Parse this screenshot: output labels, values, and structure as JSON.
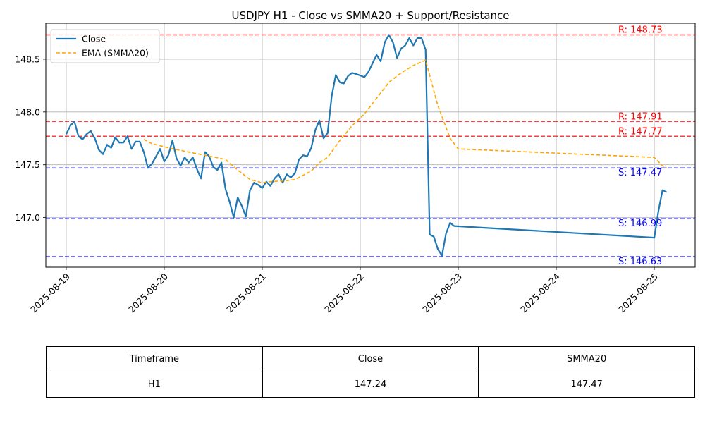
{
  "chart_data": {
    "type": "line",
    "title": "USDJPY H1 - Close vs SMMA20 + Support/Resistance",
    "xlabel": "",
    "ylabel": "",
    "xlim": [
      "2025-08-18 19:00",
      "2025-08-25 10:00"
    ],
    "ylim": [
      146.53,
      148.84
    ],
    "x_ticks": [
      "2025-08-19",
      "2025-08-20",
      "2025-08-21",
      "2025-08-22",
      "2025-08-23",
      "2025-08-24",
      "2025-08-25"
    ],
    "y_ticks": [
      "147.0",
      "147.5",
      "148.0",
      "148.5"
    ],
    "y_tick_values": [
      147.0,
      147.5,
      148.0,
      148.5
    ],
    "grid": true,
    "legend_position": "top-left",
    "series": [
      {
        "name": "Close",
        "style": "solid",
        "color": "#1f77b4",
        "points": [
          [
            "2025-08-19 00:00",
            147.79
          ],
          [
            "2025-08-19 01:00",
            147.87
          ],
          [
            "2025-08-19 02:00",
            147.91
          ],
          [
            "2025-08-19 03:00",
            147.77
          ],
          [
            "2025-08-19 04:00",
            147.74
          ],
          [
            "2025-08-19 05:00",
            147.79
          ],
          [
            "2025-08-19 06:00",
            147.82
          ],
          [
            "2025-08-19 07:00",
            147.75
          ],
          [
            "2025-08-19 08:00",
            147.64
          ],
          [
            "2025-08-19 09:00",
            147.6
          ],
          [
            "2025-08-19 10:00",
            147.69
          ],
          [
            "2025-08-19 11:00",
            147.66
          ],
          [
            "2025-08-19 12:00",
            147.76
          ],
          [
            "2025-08-19 13:00",
            147.71
          ],
          [
            "2025-08-19 14:00",
            147.71
          ],
          [
            "2025-08-19 15:00",
            147.77
          ],
          [
            "2025-08-19 16:00",
            147.65
          ],
          [
            "2025-08-19 17:00",
            147.72
          ],
          [
            "2025-08-19 18:00",
            147.72
          ],
          [
            "2025-08-19 19:00",
            147.62
          ],
          [
            "2025-08-19 20:00",
            147.47
          ],
          [
            "2025-08-19 21:00",
            147.51
          ],
          [
            "2025-08-19 22:00",
            147.58
          ],
          [
            "2025-08-19 23:00",
            147.65
          ],
          [
            "2025-08-20 00:00",
            147.53
          ],
          [
            "2025-08-20 01:00",
            147.59
          ],
          [
            "2025-08-20 02:00",
            147.73
          ],
          [
            "2025-08-20 03:00",
            147.56
          ],
          [
            "2025-08-20 04:00",
            147.49
          ],
          [
            "2025-08-20 05:00",
            147.57
          ],
          [
            "2025-08-20 06:00",
            147.52
          ],
          [
            "2025-08-20 07:00",
            147.57
          ],
          [
            "2025-08-20 08:00",
            147.46
          ],
          [
            "2025-08-20 09:00",
            147.37
          ],
          [
            "2025-08-20 10:00",
            147.62
          ],
          [
            "2025-08-20 11:00",
            147.58
          ],
          [
            "2025-08-20 12:00",
            147.48
          ],
          [
            "2025-08-20 13:00",
            147.45
          ],
          [
            "2025-08-20 14:00",
            147.52
          ],
          [
            "2025-08-20 15:00",
            147.27
          ],
          [
            "2025-08-20 16:00",
            147.15
          ],
          [
            "2025-08-20 17:00",
            147.0
          ],
          [
            "2025-08-20 18:00",
            147.19
          ],
          [
            "2025-08-20 19:00",
            147.11
          ],
          [
            "2025-08-20 20:00",
            147.01
          ],
          [
            "2025-08-20 21:00",
            147.26
          ],
          [
            "2025-08-20 22:00",
            147.33
          ],
          [
            "2025-08-20 23:00",
            147.31
          ],
          [
            "2025-08-21 00:00",
            147.28
          ],
          [
            "2025-08-21 01:00",
            147.34
          ],
          [
            "2025-08-21 02:00",
            147.3
          ],
          [
            "2025-08-21 03:00",
            147.37
          ],
          [
            "2025-08-21 04:00",
            147.41
          ],
          [
            "2025-08-21 05:00",
            147.33
          ],
          [
            "2025-08-21 06:00",
            147.41
          ],
          [
            "2025-08-21 07:00",
            147.38
          ],
          [
            "2025-08-21 08:00",
            147.42
          ],
          [
            "2025-08-21 09:00",
            147.55
          ],
          [
            "2025-08-21 10:00",
            147.59
          ],
          [
            "2025-08-21 11:00",
            147.58
          ],
          [
            "2025-08-21 12:00",
            147.66
          ],
          [
            "2025-08-21 13:00",
            147.83
          ],
          [
            "2025-08-21 14:00",
            147.92
          ],
          [
            "2025-08-21 15:00",
            147.75
          ],
          [
            "2025-08-21 16:00",
            147.8
          ],
          [
            "2025-08-21 17:00",
            148.15
          ],
          [
            "2025-08-21 18:00",
            148.35
          ],
          [
            "2025-08-21 19:00",
            148.28
          ],
          [
            "2025-08-21 20:00",
            148.27
          ],
          [
            "2025-08-21 21:00",
            148.34
          ],
          [
            "2025-08-21 22:00",
            148.37
          ],
          [
            "2025-08-21 23:00",
            148.36
          ],
          [
            "2025-08-22 01:00",
            148.33
          ],
          [
            "2025-08-22 02:00",
            148.38
          ],
          [
            "2025-08-22 03:00",
            148.46
          ],
          [
            "2025-08-22 04:00",
            148.54
          ],
          [
            "2025-08-22 05:00",
            148.48
          ],
          [
            "2025-08-22 06:00",
            148.66
          ],
          [
            "2025-08-22 07:00",
            148.73
          ],
          [
            "2025-08-22 08:00",
            148.66
          ],
          [
            "2025-08-22 09:00",
            148.51
          ],
          [
            "2025-08-22 10:00",
            148.6
          ],
          [
            "2025-08-22 11:00",
            148.63
          ],
          [
            "2025-08-22 12:00",
            148.7
          ],
          [
            "2025-08-22 13:00",
            148.63
          ],
          [
            "2025-08-22 14:00",
            148.7
          ],
          [
            "2025-08-22 15:00",
            148.7
          ],
          [
            "2025-08-22 16:00",
            148.59
          ],
          [
            "2025-08-22 17:00",
            146.84
          ],
          [
            "2025-08-22 18:00",
            146.82
          ],
          [
            "2025-08-22 19:00",
            146.7
          ],
          [
            "2025-08-22 20:00",
            146.64
          ],
          [
            "2025-08-22 21:00",
            146.85
          ],
          [
            "2025-08-22 22:00",
            146.95
          ],
          [
            "2025-08-22 23:00",
            146.92
          ],
          [
            "2025-08-25 00:00",
            146.81
          ],
          [
            "2025-08-25 01:00",
            147.06
          ],
          [
            "2025-08-25 02:00",
            147.26
          ],
          [
            "2025-08-25 03:00",
            147.24
          ]
        ]
      },
      {
        "name": "EMA (SMMA20)",
        "style": "dashed",
        "color": "#ffa500",
        "points": [
          [
            "2025-08-19 19:00",
            147.74
          ],
          [
            "2025-08-19 21:00",
            147.7
          ],
          [
            "2025-08-20 00:00",
            147.67
          ],
          [
            "2025-08-20 06:00",
            147.62
          ],
          [
            "2025-08-20 10:00",
            147.59
          ],
          [
            "2025-08-20 15:00",
            147.55
          ],
          [
            "2025-08-20 18:00",
            147.45
          ],
          [
            "2025-08-20 21:00",
            147.36
          ],
          [
            "2025-08-21 00:00",
            147.33
          ],
          [
            "2025-08-21 02:00",
            147.34
          ],
          [
            "2025-08-21 06:00",
            147.35
          ],
          [
            "2025-08-21 08:00",
            147.36
          ],
          [
            "2025-08-21 12:00",
            147.44
          ],
          [
            "2025-08-21 14:00",
            147.52
          ],
          [
            "2025-08-21 16:00",
            147.57
          ],
          [
            "2025-08-21 19:00",
            147.73
          ],
          [
            "2025-08-21 22:00",
            147.87
          ],
          [
            "2025-08-22 01:00",
            147.98
          ],
          [
            "2025-08-22 04:00",
            148.13
          ],
          [
            "2025-08-22 07:00",
            148.28
          ],
          [
            "2025-08-22 10:00",
            148.37
          ],
          [
            "2025-08-22 13:00",
            148.44
          ],
          [
            "2025-08-22 16:00",
            148.49
          ],
          [
            "2025-08-22 19:00",
            148.06
          ],
          [
            "2025-08-22 22:00",
            147.75
          ],
          [
            "2025-08-23 00:00",
            147.65
          ],
          [
            "2025-08-25 00:00",
            147.57
          ],
          [
            "2025-08-25 02:00",
            147.49
          ],
          [
            "2025-08-25 03:00",
            147.47
          ]
        ]
      }
    ],
    "levels": [
      {
        "kind": "resistance",
        "label": "R: 148.73",
        "value": 148.73,
        "color": "#ff0000"
      },
      {
        "kind": "resistance",
        "label": "R: 147.91",
        "value": 147.91,
        "color": "#ff0000"
      },
      {
        "kind": "resistance",
        "label": "R: 147.77",
        "value": 147.77,
        "color": "#ff0000"
      },
      {
        "kind": "support",
        "label": "S: 147.47",
        "value": 147.47,
        "color": "#0000ff"
      },
      {
        "kind": "support",
        "label": "S: 146.99",
        "value": 146.99,
        "color": "#0000ff"
      },
      {
        "kind": "support",
        "label": "S: 146.63",
        "value": 146.63,
        "color": "#0000ff"
      }
    ]
  },
  "table": {
    "headers": [
      "Timeframe",
      "Close",
      "SMMA20"
    ],
    "rows": [
      [
        "H1",
        "147.24",
        "147.47"
      ]
    ]
  }
}
